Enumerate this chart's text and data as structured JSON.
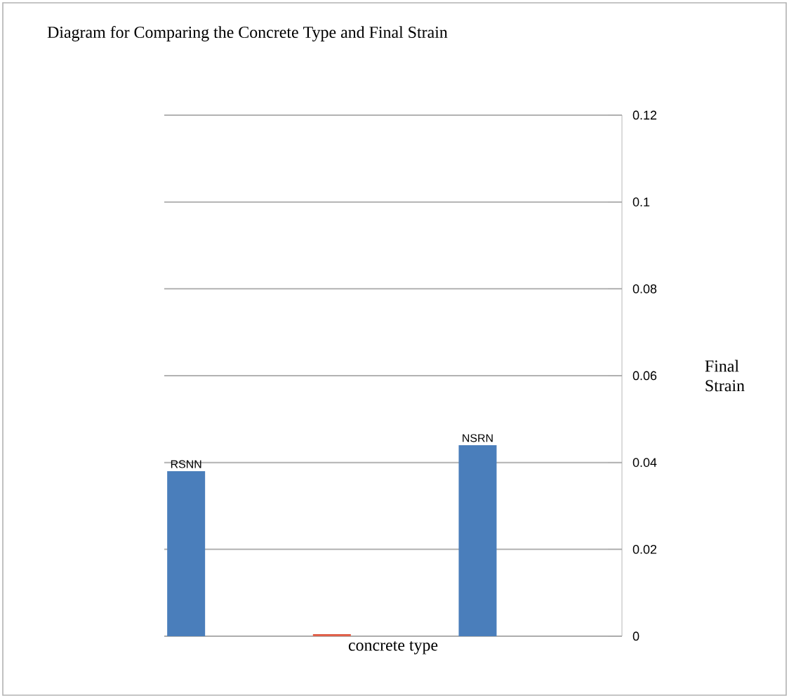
{
  "chart_data": {
    "type": "bar",
    "title": "Diagram for Comparing the Concrete Type and Final Strain",
    "xlabel": "concrete type",
    "ylabel": "Final Strain",
    "categories": [
      null,
      null,
      null
    ],
    "series": [
      {
        "name": "RSNN",
        "color": "#4a7ebb",
        "values": [
          0.038,
          null,
          null
        ]
      },
      {
        "color": "#e0604a",
        "values": [
          null,
          0.0005,
          null
        ]
      },
      {
        "name": "NSRN",
        "color": "#4a7ebb",
        "values": [
          null,
          null,
          0.044
        ]
      }
    ],
    "ylim": [
      0,
      0.12
    ],
    "yticks": [
      0,
      0.02,
      0.04,
      0.06,
      0.08,
      0.1,
      0.12
    ],
    "grid": "y",
    "legend": false
  }
}
